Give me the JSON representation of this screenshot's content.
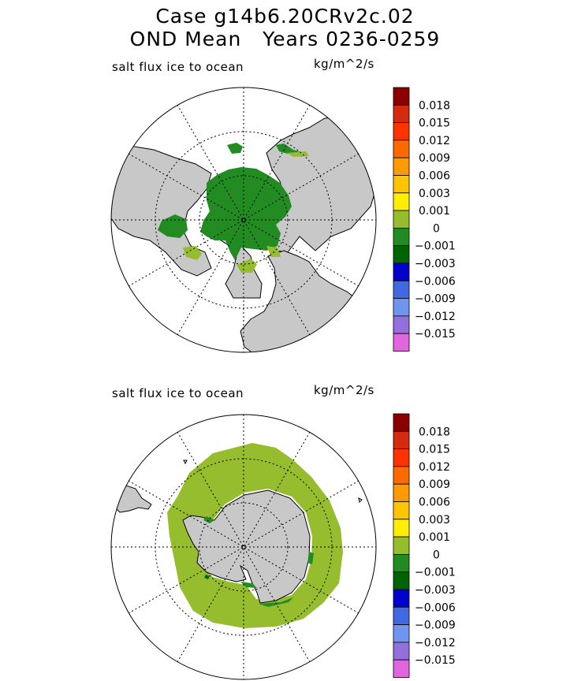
{
  "header": {
    "line1": "Case g14b6.20CRv2c.02",
    "line2": "OND Mean   Years 0236-0259"
  },
  "panels": [
    {
      "id": "north",
      "variable": "salt flux ice to ocean",
      "units": "kg/m^2/s"
    },
    {
      "id": "south",
      "variable": "salt flux ice to ocean",
      "units": "kg/m^2/s"
    }
  ],
  "colorbar": {
    "colors": [
      "#8b0000",
      "#d42a10",
      "#ff3300",
      "#ff6a00",
      "#ff9a00",
      "#ffc400",
      "#ffee00",
      "#96bd2d",
      "#228b22",
      "#006400",
      "#0000cd",
      "#4169e1",
      "#6f95f0",
      "#9370db",
      "#e066e0"
    ],
    "labels": [
      "0.018",
      "0.015",
      "0.012",
      "0.009",
      "0.006",
      "0.003",
      "0.001",
      "0",
      "-0.001",
      "-0.003",
      "-0.006",
      "-0.009",
      "-0.012",
      "-0.015"
    ]
  },
  "map_colors": {
    "land": "#c8c8c8",
    "ocean": "#ffffff",
    "ice_negative": "#228b22",
    "ice_small_positive": "#96bd2d",
    "ice_dark": "#006400"
  }
}
